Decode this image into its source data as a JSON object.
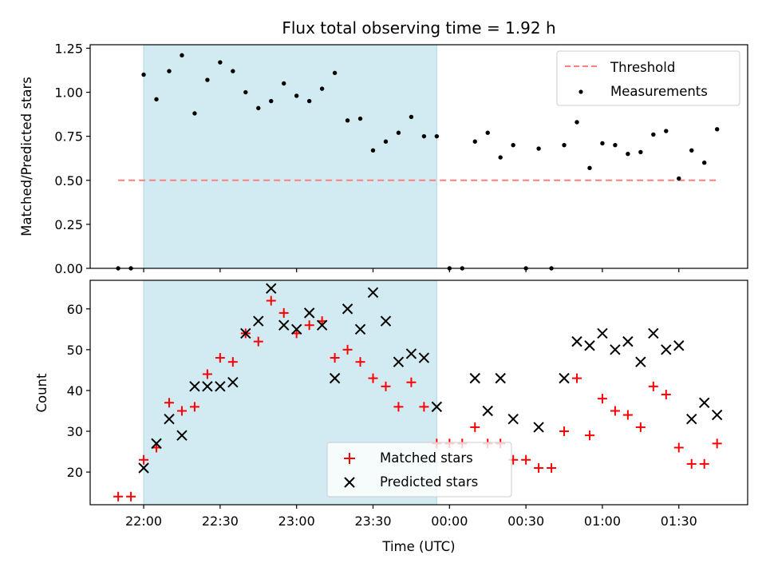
{
  "chart_data": [
    {
      "type": "scatter",
      "title": "Flux total observing time = 1.92 h",
      "ylabel": "Matched/Predicted stars",
      "ylim": [
        0,
        1.27
      ],
      "yticks": [
        "0.00",
        "0.25",
        "0.50",
        "0.75",
        "1.00",
        "1.25"
      ],
      "shaded_span": {
        "start_min": 0,
        "end_min": 115,
        "color": "#add8e6"
      },
      "series": [
        {
          "name": "Threshold",
          "style": "dashed-line",
          "color": "#ff7f7f",
          "points": [
            [
              -10,
              0.5
            ],
            [
              225,
              0.5
            ]
          ]
        },
        {
          "name": "Measurements",
          "style": "dot",
          "color": "#000000",
          "points": [
            [
              -10,
              0.0
            ],
            [
              -5,
              0.0
            ],
            [
              0,
              1.1
            ],
            [
              5,
              0.96
            ],
            [
              10,
              1.12
            ],
            [
              15,
              1.21
            ],
            [
              20,
              0.88
            ],
            [
              25,
              1.07
            ],
            [
              30,
              1.17
            ],
            [
              35,
              1.12
            ],
            [
              40,
              1.0
            ],
            [
              45,
              0.91
            ],
            [
              50,
              0.95
            ],
            [
              55,
              1.05
            ],
            [
              60,
              0.98
            ],
            [
              65,
              0.95
            ],
            [
              70,
              1.02
            ],
            [
              75,
              1.11
            ],
            [
              80,
              0.84
            ],
            [
              85,
              0.85
            ],
            [
              90,
              0.67
            ],
            [
              95,
              0.72
            ],
            [
              100,
              0.77
            ],
            [
              105,
              0.86
            ],
            [
              110,
              0.75
            ],
            [
              115,
              0.75
            ],
            [
              120,
              0.0
            ],
            [
              125,
              0.0
            ],
            [
              130,
              0.72
            ],
            [
              135,
              0.77
            ],
            [
              140,
              0.63
            ],
            [
              145,
              0.7
            ],
            [
              150,
              0.0
            ],
            [
              155,
              0.68
            ],
            [
              160,
              0.0
            ],
            [
              165,
              0.7
            ],
            [
              170,
              0.83
            ],
            [
              175,
              0.57
            ],
            [
              180,
              0.71
            ],
            [
              185,
              0.7
            ],
            [
              190,
              0.65
            ],
            [
              195,
              0.66
            ],
            [
              200,
              0.76
            ],
            [
              205,
              0.78
            ],
            [
              210,
              0.51
            ],
            [
              215,
              0.67
            ],
            [
              220,
              0.6
            ],
            [
              225,
              0.79
            ]
          ]
        }
      ],
      "legend_position": "top-right"
    },
    {
      "type": "scatter",
      "xlabel": "Time (UTC)",
      "ylabel": "Count",
      "ylim": [
        12,
        67
      ],
      "yticks": [
        "20",
        "30",
        "40",
        "50",
        "60"
      ],
      "xticks": [
        "22:00",
        "22:30",
        "23:00",
        "23:30",
        "00:00",
        "00:30",
        "01:00",
        "01:30"
      ],
      "x_tick_minutes": [
        0,
        30,
        60,
        90,
        120,
        150,
        180,
        210
      ],
      "xlim_minutes": [
        -21,
        237
      ],
      "shaded_span": {
        "start_min": 0,
        "end_min": 115,
        "color": "#add8e6"
      },
      "series": [
        {
          "name": "Matched stars",
          "marker": "plus",
          "color": "#ff0000",
          "points": [
            [
              -10,
              14
            ],
            [
              -5,
              14
            ],
            [
              0,
              23
            ],
            [
              5,
              26
            ],
            [
              10,
              37
            ],
            [
              15,
              35
            ],
            [
              20,
              36
            ],
            [
              25,
              44
            ],
            [
              30,
              48
            ],
            [
              35,
              47
            ],
            [
              40,
              54
            ],
            [
              45,
              52
            ],
            [
              50,
              62
            ],
            [
              55,
              59
            ],
            [
              60,
              54
            ],
            [
              65,
              56
            ],
            [
              70,
              57
            ],
            [
              75,
              48
            ],
            [
              80,
              50
            ],
            [
              85,
              47
            ],
            [
              90,
              43
            ],
            [
              95,
              41
            ],
            [
              100,
              36
            ],
            [
              105,
              42
            ],
            [
              110,
              36
            ],
            [
              115,
              27
            ],
            [
              120,
              27
            ],
            [
              125,
              27
            ],
            [
              130,
              31
            ],
            [
              135,
              27
            ],
            [
              140,
              27
            ],
            [
              145,
              23
            ],
            [
              150,
              23
            ],
            [
              155,
              21
            ],
            [
              160,
              21
            ],
            [
              165,
              30
            ],
            [
              170,
              43
            ],
            [
              175,
              29
            ],
            [
              180,
              38
            ],
            [
              185,
              35
            ],
            [
              190,
              34
            ],
            [
              195,
              31
            ],
            [
              200,
              41
            ],
            [
              205,
              39
            ],
            [
              210,
              26
            ],
            [
              215,
              22
            ],
            [
              220,
              22
            ],
            [
              225,
              27
            ]
          ]
        },
        {
          "name": "Predicted stars",
          "marker": "x",
          "color": "#000000",
          "points": [
            [
              0,
              21
            ],
            [
              5,
              27
            ],
            [
              10,
              33
            ],
            [
              15,
              29
            ],
            [
              20,
              41
            ],
            [
              25,
              41
            ],
            [
              30,
              41
            ],
            [
              35,
              42
            ],
            [
              40,
              54
            ],
            [
              45,
              57
            ],
            [
              50,
              65
            ],
            [
              55,
              56
            ],
            [
              60,
              55
            ],
            [
              65,
              59
            ],
            [
              70,
              56
            ],
            [
              75,
              43
            ],
            [
              80,
              60
            ],
            [
              85,
              55
            ],
            [
              90,
              64
            ],
            [
              95,
              57
            ],
            [
              100,
              47
            ],
            [
              105,
              49
            ],
            [
              110,
              48
            ],
            [
              115,
              36
            ],
            [
              130,
              43
            ],
            [
              135,
              35
            ],
            [
              140,
              43
            ],
            [
              145,
              33
            ],
            [
              155,
              31
            ],
            [
              165,
              43
            ],
            [
              170,
              52
            ],
            [
              175,
              51
            ],
            [
              180,
              54
            ],
            [
              185,
              50
            ],
            [
              190,
              52
            ],
            [
              195,
              47
            ],
            [
              200,
              54
            ],
            [
              205,
              50
            ],
            [
              210,
              51
            ],
            [
              215,
              33
            ],
            [
              220,
              37
            ],
            [
              225,
              34
            ]
          ]
        }
      ],
      "legend_position": "bottom-center"
    }
  ]
}
